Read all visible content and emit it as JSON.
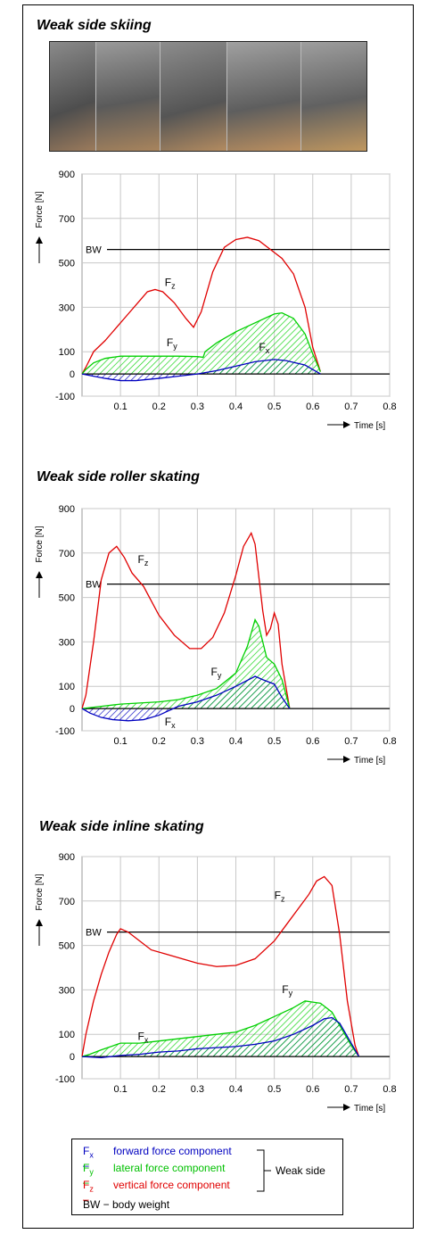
{
  "panels": [
    {
      "title": "Weak side skiing",
      "chart_data": {
        "type": "line",
        "ylabel": "Force [N]",
        "xlabel": "Time [s]",
        "xlim": [
          0,
          0.8
        ],
        "ylim": [
          -100,
          900
        ],
        "x_ticks": [
          "0.1",
          "0.2",
          "0.3",
          "0.4",
          "0.5",
          "0.6",
          "0.7",
          "0.8"
        ],
        "y_ticks": [
          "-100",
          "0",
          "100",
          "300",
          "500",
          "700",
          "900"
        ],
        "bw_label": "BW",
        "bw_value": 560,
        "series": [
          {
            "name": "Fz",
            "color": "#e00000",
            "x": [
              0,
              0.01,
              0.03,
              0.06,
              0.09,
              0.12,
              0.15,
              0.17,
              0.19,
              0.21,
              0.24,
              0.27,
              0.29,
              0.31,
              0.34,
              0.37,
              0.4,
              0.43,
              0.46,
              0.49,
              0.52,
              0.55,
              0.58,
              0.6,
              0.62
            ],
            "y": [
              0,
              30,
              100,
              150,
              210,
              270,
              330,
              370,
              380,
              370,
              320,
              250,
              210,
              280,
              460,
              570,
              605,
              615,
              600,
              560,
              520,
              450,
              300,
              120,
              10
            ]
          },
          {
            "name": "Fy",
            "color": "#00d000",
            "x": [
              0,
              0.01,
              0.03,
              0.06,
              0.1,
              0.15,
              0.2,
              0.25,
              0.3,
              0.315,
              0.32,
              0.35,
              0.4,
              0.45,
              0.5,
              0.52,
              0.55,
              0.58,
              0.6,
              0.62
            ],
            "y": [
              0,
              20,
              50,
              70,
              80,
              80,
              80,
              80,
              78,
              75,
              100,
              140,
              190,
              230,
              270,
              275,
              250,
              180,
              90,
              10
            ]
          },
          {
            "name": "Fx",
            "color": "#0000c0",
            "x": [
              0,
              0.03,
              0.06,
              0.1,
              0.14,
              0.2,
              0.25,
              0.3,
              0.35,
              0.4,
              0.45,
              0.5,
              0.53,
              0.58,
              0.62
            ],
            "y": [
              0,
              -10,
              -20,
              -30,
              -30,
              -20,
              -10,
              0,
              15,
              35,
              55,
              65,
              60,
              40,
              0
            ]
          }
        ],
        "labels": [
          {
            "text": "F",
            "sub": "z",
            "x": 0.215,
            "y": 395
          },
          {
            "text": "F",
            "sub": "y",
            "x": 0.22,
            "y": 125
          },
          {
            "text": "F",
            "sub": "x",
            "x": 0.46,
            "y": 105
          }
        ]
      }
    },
    {
      "title": "Weak side roller skating",
      "chart_data": {
        "type": "line",
        "ylabel": "Force [N]",
        "xlabel": "Time [s]",
        "xlim": [
          0,
          0.8
        ],
        "ylim": [
          -100,
          900
        ],
        "x_ticks": [
          "0.1",
          "0.2",
          "0.3",
          "0.4",
          "0.5",
          "0.6",
          "0.7",
          "0.8"
        ],
        "y_ticks": [
          "-100",
          "0",
          "100",
          "300",
          "500",
          "700",
          "900"
        ],
        "bw_label": "BW",
        "bw_value": 560,
        "series": [
          {
            "name": "Fz",
            "color": "#e00000",
            "x": [
              0,
              0.01,
              0.03,
              0.05,
              0.07,
              0.09,
              0.11,
              0.13,
              0.16,
              0.2,
              0.24,
              0.28,
              0.31,
              0.34,
              0.37,
              0.4,
              0.42,
              0.44,
              0.45,
              0.47,
              0.48,
              0.49,
              0.5,
              0.51,
              0.52,
              0.54
            ],
            "y": [
              0,
              60,
              300,
              580,
              700,
              730,
              680,
              610,
              550,
              420,
              330,
              270,
              270,
              320,
              430,
              600,
              730,
              790,
              740,
              440,
              330,
              360,
              430,
              380,
              200,
              0
            ]
          },
          {
            "name": "Fy",
            "color": "#00d000",
            "x": [
              0,
              0.05,
              0.1,
              0.15,
              0.2,
              0.25,
              0.3,
              0.35,
              0.4,
              0.43,
              0.45,
              0.46,
              0.48,
              0.5,
              0.52,
              0.54
            ],
            "y": [
              0,
              10,
              20,
              25,
              30,
              40,
              60,
              90,
              160,
              280,
              400,
              370,
              230,
              200,
              130,
              0
            ]
          },
          {
            "name": "Fx",
            "color": "#0000c0",
            "x": [
              0,
              0.02,
              0.05,
              0.08,
              0.12,
              0.16,
              0.2,
              0.25,
              0.3,
              0.35,
              0.4,
              0.45,
              0.47,
              0.5,
              0.52,
              0.54
            ],
            "y": [
              0,
              -20,
              -40,
              -50,
              -55,
              -50,
              -30,
              10,
              30,
              60,
              100,
              145,
              130,
              110,
              50,
              0
            ]
          }
        ],
        "labels": [
          {
            "text": "F",
            "sub": "z",
            "x": 0.145,
            "y": 655
          },
          {
            "text": "F",
            "sub": "y",
            "x": 0.335,
            "y": 150
          },
          {
            "text": "F",
            "sub": "x",
            "x": 0.215,
            "y": -75
          }
        ]
      }
    },
    {
      "title": "Weak side inline skating",
      "chart_data": {
        "type": "line",
        "ylabel": "Force [N]",
        "xlabel": "Time [s]",
        "xlim": [
          0,
          0.8
        ],
        "ylim": [
          -100,
          900
        ],
        "x_ticks": [
          "0.1",
          "0.2",
          "0.3",
          "0.4",
          "0.5",
          "0.6",
          "0.7",
          "0.8"
        ],
        "y_ticks": [
          "-100",
          "0",
          "100",
          "300",
          "500",
          "700",
          "900"
        ],
        "bw_label": "BW",
        "bw_value": 560,
        "series": [
          {
            "name": "Fz",
            "color": "#e00000",
            "x": [
              0,
              0.01,
              0.03,
              0.05,
              0.07,
              0.09,
              0.1,
              0.12,
              0.15,
              0.18,
              0.22,
              0.26,
              0.3,
              0.35,
              0.4,
              0.45,
              0.5,
              0.53,
              0.56,
              0.59,
              0.61,
              0.63,
              0.65,
              0.67,
              0.69,
              0.71,
              0.72
            ],
            "y": [
              0,
              100,
              250,
              370,
              470,
              550,
              575,
              560,
              520,
              480,
              460,
              440,
              420,
              405,
              410,
              440,
              520,
              590,
              660,
              730,
              790,
              810,
              770,
              550,
              250,
              50,
              0
            ]
          },
          {
            "name": "Fy",
            "color": "#00d000",
            "x": [
              0,
              0.02,
              0.05,
              0.1,
              0.15,
              0.2,
              0.25,
              0.3,
              0.35,
              0.4,
              0.45,
              0.5,
              0.55,
              0.58,
              0.6,
              0.62,
              0.65,
              0.67,
              0.7,
              0.72
            ],
            "y": [
              0,
              10,
              30,
              60,
              60,
              70,
              80,
              90,
              100,
              110,
              140,
              180,
              220,
              250,
              245,
              240,
              200,
              140,
              50,
              0
            ]
          },
          {
            "name": "Fx",
            "color": "#0000c0",
            "x": [
              0,
              0.05,
              0.1,
              0.15,
              0.2,
              0.25,
              0.3,
              0.35,
              0.4,
              0.45,
              0.5,
              0.55,
              0.6,
              0.63,
              0.65,
              0.67,
              0.7,
              0.72
            ],
            "y": [
              0,
              -5,
              5,
              10,
              20,
              25,
              35,
              40,
              45,
              55,
              70,
              100,
              140,
              170,
              175,
              150,
              60,
              0
            ]
          }
        ],
        "labels": [
          {
            "text": "F",
            "sub": "z",
            "x": 0.5,
            "y": 710
          },
          {
            "text": "F",
            "sub": "y",
            "x": 0.52,
            "y": 285
          },
          {
            "text": "F",
            "sub": "x",
            "x": 0.145,
            "y": 75
          }
        ]
      }
    }
  ],
  "legend": {
    "items": [
      {
        "sym": "F",
        "sub": "x",
        "text": "forward force component",
        "color": "#0000c0"
      },
      {
        "sym": "F",
        "sub": "y",
        "text": "lateral force component",
        "color": "#00d000"
      },
      {
        "sym": "F",
        "sub": "z",
        "text": "vertical force component",
        "color": "#e00000"
      }
    ],
    "group_label": "Weak side",
    "bw_text": "BW − body weight"
  }
}
